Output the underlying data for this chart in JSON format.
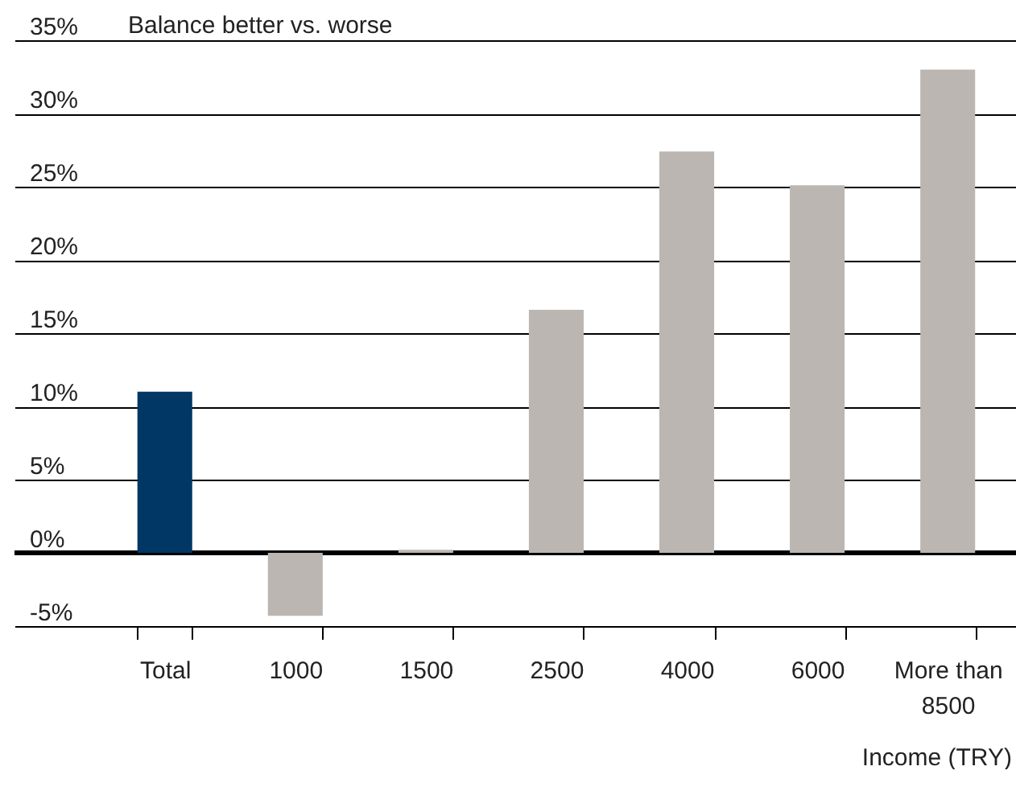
{
  "chart_data": {
    "type": "bar",
    "ylabel": "Balance better vs. worse",
    "xlabel": "Income (TRY)",
    "categories": [
      "Total",
      "1000",
      "1500",
      "2500",
      "4000",
      "6000",
      "More than 8500"
    ],
    "values": [
      11.0,
      -4.3,
      0.2,
      16.6,
      27.4,
      25.1,
      33.0
    ],
    "colors": [
      "#003764",
      "#bbb6b1",
      "#bbb6b1",
      "#bbb6b1",
      "#bbb6b1",
      "#bbb6b1",
      "#bbb6b1"
    ],
    "ylim": [
      -5,
      35
    ],
    "yticks": [
      {
        "value": -5,
        "label": "-5%"
      },
      {
        "value": 0,
        "label": "0%"
      },
      {
        "value": 5,
        "label": "5%"
      },
      {
        "value": 10,
        "label": "10%"
      },
      {
        "value": 15,
        "label": "15%"
      },
      {
        "value": 20,
        "label": "20%"
      },
      {
        "value": 25,
        "label": "25%"
      },
      {
        "value": 30,
        "label": "30%"
      },
      {
        "value": 35,
        "label": "35%"
      }
    ],
    "grid": "y",
    "legend": false,
    "ref_lines": [
      {
        "axis": "y",
        "value": 0,
        "color": "#000000"
      }
    ]
  }
}
